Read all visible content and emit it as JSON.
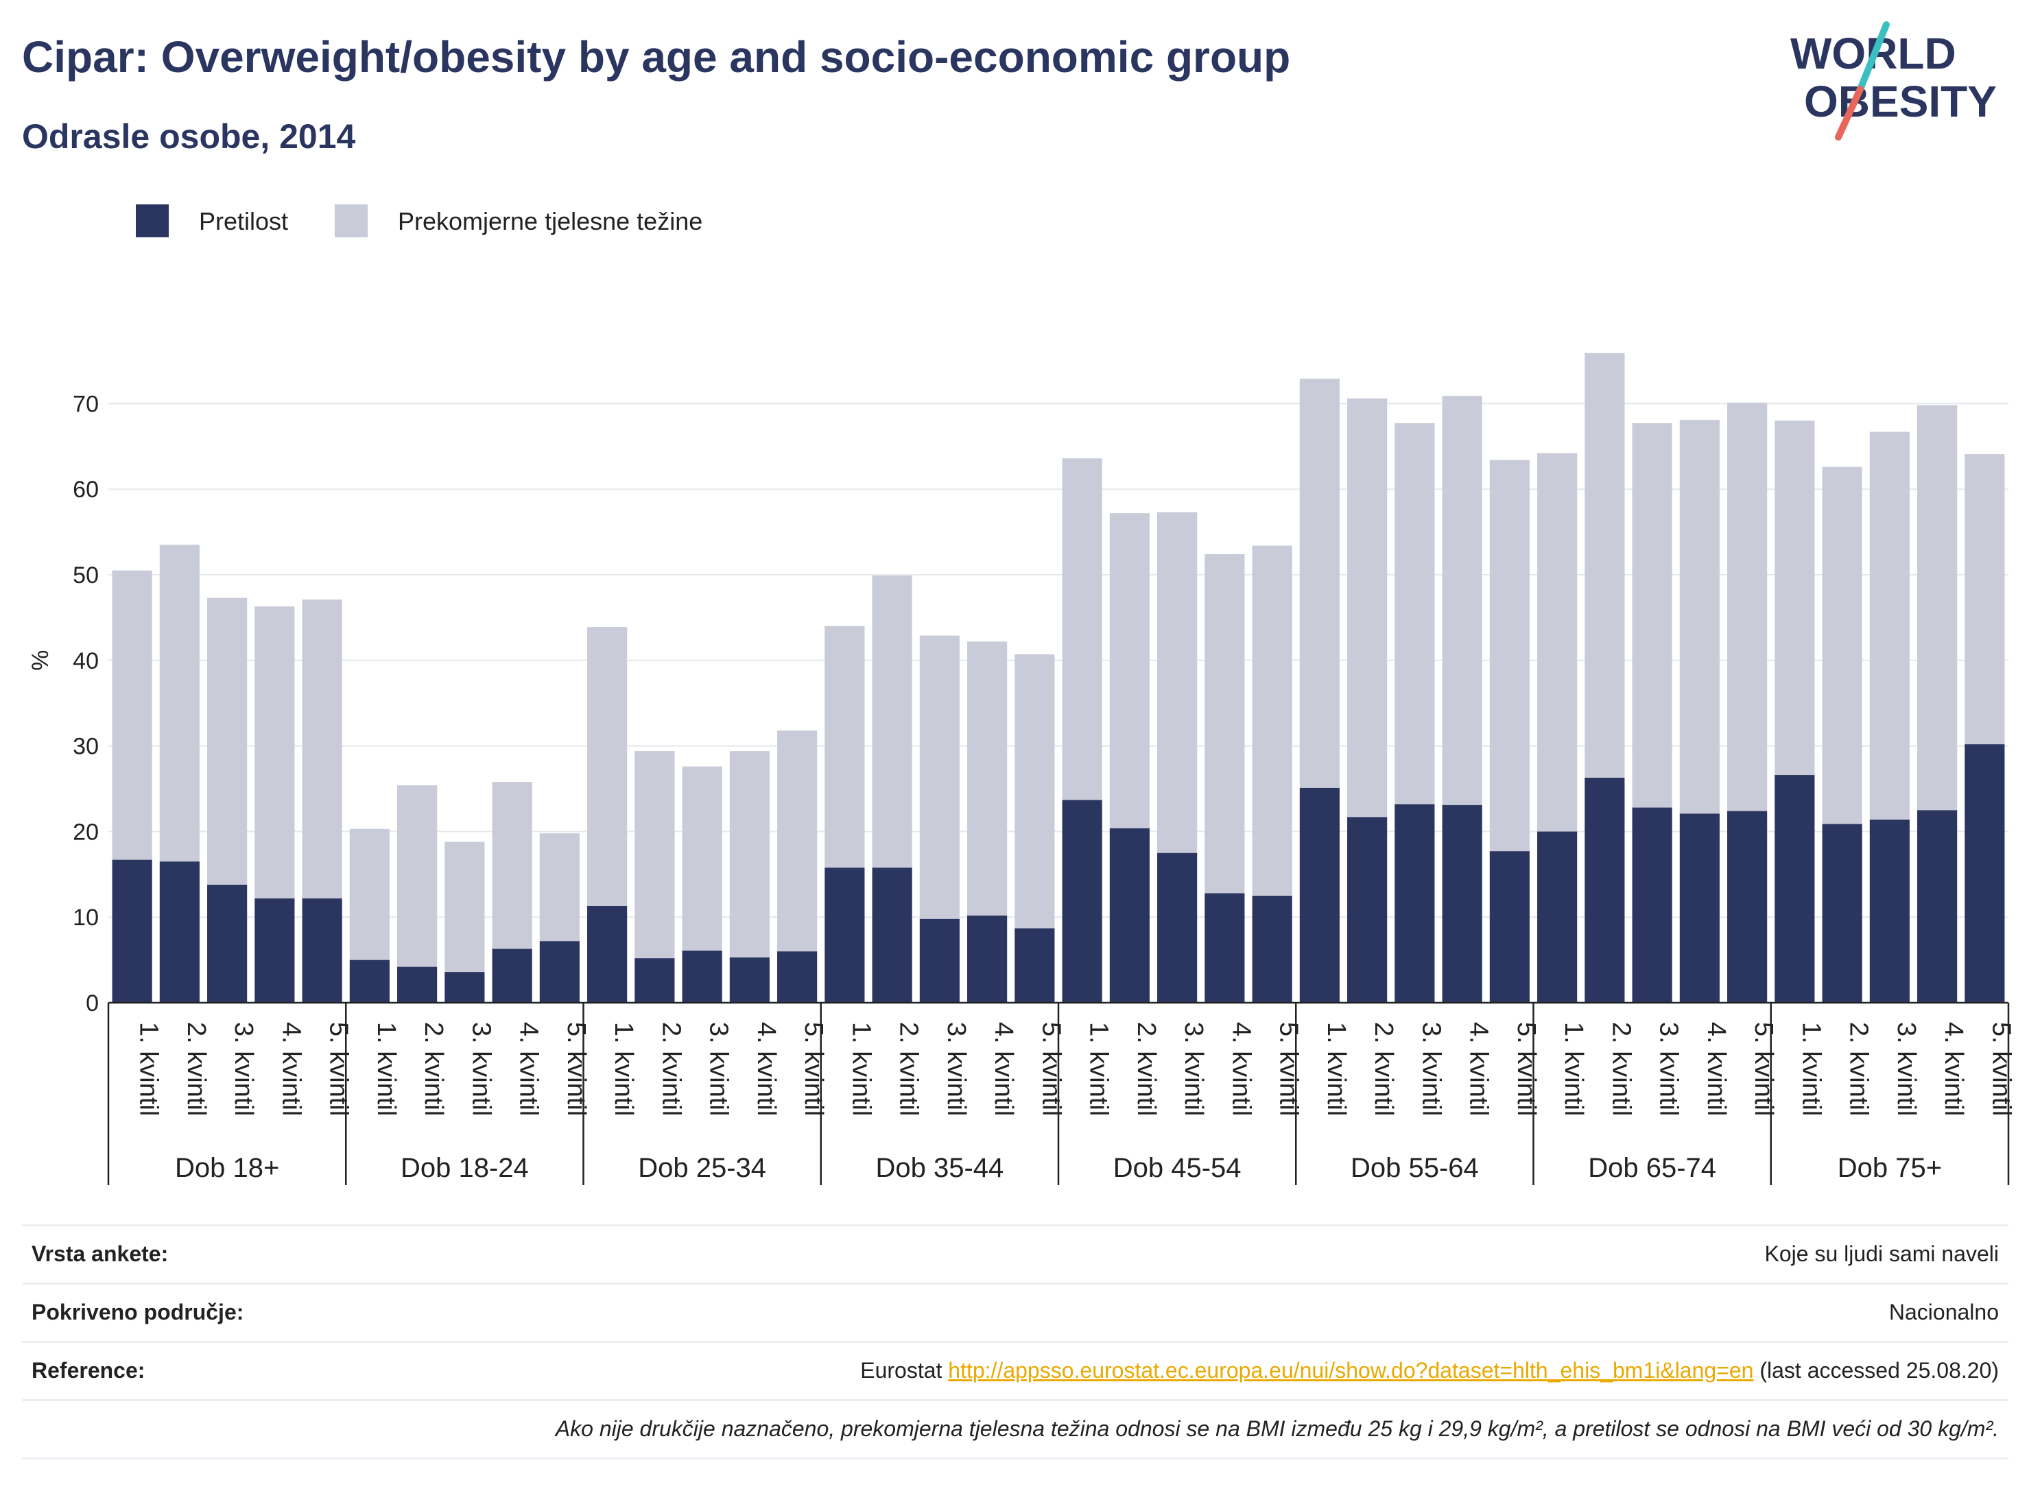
{
  "title": "Cipar: Overweight/obesity by age and socio-economic group",
  "subtitle": "Odrasle osobe, 2014",
  "logo": {
    "line1": "WORLD",
    "line2": "OBESITY"
  },
  "colors": {
    "obesity": "#2a3560",
    "overweight": "#c9ccd8",
    "title": "#2a3560",
    "link": "#e8a900",
    "logo_accent_teal": "#3bbfc1",
    "logo_accent_red": "#e8675a"
  },
  "legend": [
    {
      "label": "Pretilost",
      "color": "#2a3560"
    },
    {
      "label": "Prekomjerne tjelesne težine",
      "color": "#c9ccd8"
    }
  ],
  "chart_data": {
    "type": "bar",
    "stacked": true,
    "ylabel": "%",
    "ylim": [
      0,
      80
    ],
    "yticks": [
      0,
      10,
      20,
      30,
      40,
      50,
      60,
      70
    ],
    "grid": true,
    "legend_position": "top-left",
    "category_labels": [
      "1. kvintil",
      "2. kvintil",
      "3. kvintil",
      "4. kvintil",
      "5. kvintil"
    ],
    "groups": [
      "Dob 18+",
      "Dob 18-24",
      "Dob 25-34",
      "Dob 35-44",
      "Dob 45-54",
      "Dob 55-64",
      "Dob 65-74",
      "Dob 75+"
    ],
    "series": [
      {
        "name": "Pretilost",
        "values": [
          16.7,
          16.5,
          13.8,
          12.2,
          12.2,
          5.0,
          4.2,
          3.6,
          6.3,
          7.2,
          11.3,
          5.2,
          6.1,
          5.3,
          6.0,
          15.8,
          15.8,
          9.8,
          10.2,
          8.7,
          23.7,
          20.4,
          17.5,
          12.8,
          12.5,
          25.1,
          21.7,
          23.2,
          23.1,
          17.7,
          20.0,
          26.3,
          22.8,
          22.1,
          22.4,
          26.6,
          20.9,
          21.4,
          22.5,
          30.2
        ]
      },
      {
        "name": "Prekomjerne tjelesne težine",
        "values": [
          33.8,
          37.0,
          33.5,
          34.1,
          34.9,
          15.3,
          21.2,
          15.2,
          19.5,
          12.6,
          32.6,
          24.2,
          21.5,
          24.1,
          25.8,
          28.2,
          34.1,
          33.1,
          32.0,
          32.0,
          39.9,
          36.8,
          39.8,
          39.6,
          40.9,
          47.8,
          48.9,
          44.5,
          47.8,
          45.7,
          44.2,
          49.6,
          44.9,
          46.0,
          47.7,
          41.4,
          41.7,
          45.3,
          47.3,
          33.9
        ]
      }
    ]
  },
  "meta": {
    "rows": [
      {
        "key": "Vrsta ankete:",
        "value": "Koje su ljudi sami naveli"
      },
      {
        "key": "Pokriveno područje:",
        "value": "Nacionalno"
      }
    ],
    "reference": {
      "key": "Reference:",
      "prefix": "Eurostat ",
      "link": "http://appsso.eurostat.ec.europa.eu/nui/show.do?dataset=hlth_ehis_bm1i&lang=en",
      "suffix": " (last accessed 25.08.20)"
    },
    "note": "Ako nije drukčije naznačeno, prekomjerna tjelesna težina odnosi se na BMI između 25 kg i 29,9 kg/m², a pretilost se odnosi na BMI veći od 30 kg/m²."
  }
}
